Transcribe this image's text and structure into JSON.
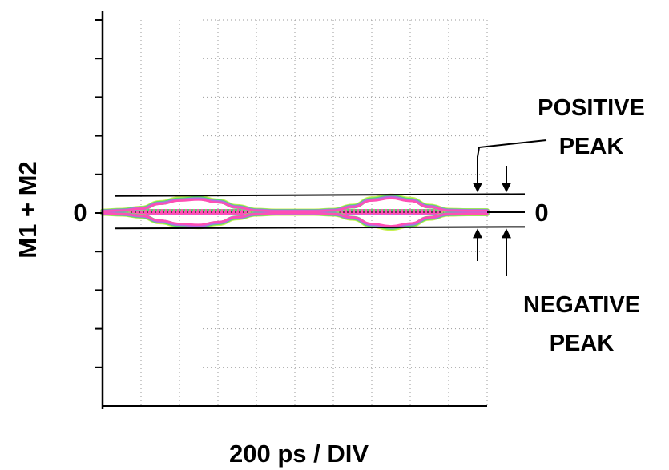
{
  "chart_data": {
    "type": "line",
    "title": "",
    "xlabel": "200 ps / DIV",
    "ylabel": "M1 + M2",
    "x_divisions": 10,
    "y_divisions": 10,
    "ylim": [
      -5,
      5
    ],
    "y_tick_labels": [
      {
        "value": 0,
        "label": "0"
      }
    ],
    "grid": true,
    "grid_style": "dotted",
    "series": [
      {
        "values_x_div": [
          0,
          0.5,
          1.0,
          1.5,
          2.0,
          2.5,
          3.0,
          3.5,
          4.0,
          4.5,
          5.0,
          5.5,
          6.0,
          6.5,
          7.0,
          7.5,
          8.0,
          8.5,
          9.0,
          9.5,
          10.0
        ],
        "upper_envelope_div": [
          0.03,
          0.05,
          0.1,
          0.24,
          0.33,
          0.36,
          0.28,
          0.14,
          0.05,
          0.03,
          0.03,
          0.03,
          0.05,
          0.15,
          0.33,
          0.4,
          0.32,
          0.15,
          0.05,
          0.04,
          0.04
        ],
        "lower_envelope_div": [
          -0.03,
          -0.05,
          -0.1,
          -0.24,
          -0.33,
          -0.36,
          -0.28,
          -0.14,
          -0.05,
          -0.03,
          -0.03,
          -0.03,
          -0.05,
          -0.15,
          -0.33,
          -0.4,
          -0.32,
          -0.15,
          -0.05,
          -0.04,
          -0.04
        ]
      }
    ],
    "reference_lines": [
      {
        "y_start_div": 0.42,
        "y_end_div": 0.47
      },
      {
        "y_start_div": -0.42,
        "y_end_div": -0.38
      }
    ],
    "annotations": {
      "positive_peak": {
        "line1": "POSITIVE",
        "line2": "PEAK"
      },
      "negative_peak": {
        "line1": "NEGATIVE",
        "line2": "PEAK"
      },
      "zero_right": "0"
    },
    "colors": {
      "trace_magenta": "#ff4fb4",
      "trace_purple": "#b070e0",
      "trace_green": "#4fe06a",
      "trace_yellowgreen": "#c8f050",
      "grid": "#9a9a9a",
      "axis": "#000000"
    }
  }
}
